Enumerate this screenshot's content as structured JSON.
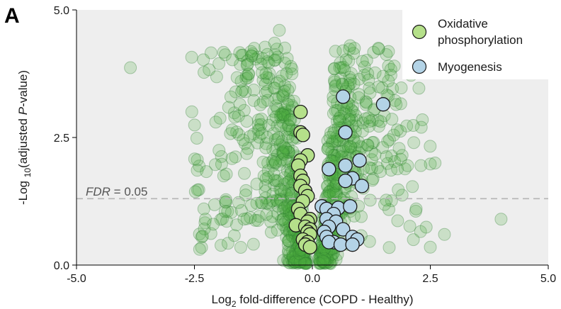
{
  "chart_data": {
    "type": "scatter",
    "panel_label": "A",
    "xlabel": {
      "pre": "Log",
      "sub": "2",
      "post": " fold-difference  (COPD -  Healthy)"
    },
    "ylabel": {
      "pre": "-Log ",
      "sub": "10",
      "mid": "(adjusted ",
      "ital": "P",
      "post": "-value)"
    },
    "xlim": [
      -5,
      5
    ],
    "ylim": [
      0,
      5
    ],
    "x_ticks": [
      "-5.0",
      "-2.5",
      "0.0",
      "2.5",
      "5.0"
    ],
    "y_ticks": [
      "0.0",
      "2.5",
      "5.0"
    ],
    "threshold": {
      "y": 1.301,
      "label_pre": "FDR",
      "label_post": " = 0.05"
    },
    "colors": {
      "background_point": "#4caf3e",
      "oxidative": "#b5e08a",
      "myogenesis": "#b3d3e6",
      "panel_bg": "#eeeeee"
    },
    "legend": {
      "position": "top-right",
      "items": [
        {
          "key": "oxidative",
          "lines": [
            "Oxidative",
            "phosphorylation"
          ]
        },
        {
          "key": "myogenesis",
          "lines": [
            "Myogenesis"
          ]
        }
      ]
    },
    "series": [
      {
        "name": "Oxidative phosphorylation",
        "key": "oxidative",
        "points": [
          [
            -0.25,
            3.0
          ],
          [
            -0.25,
            2.6
          ],
          [
            -0.2,
            2.55
          ],
          [
            -0.1,
            2.15
          ],
          [
            -0.25,
            2.05
          ],
          [
            -0.3,
            1.95
          ],
          [
            -0.25,
            1.75
          ],
          [
            -0.2,
            1.65
          ],
          [
            -0.25,
            1.55
          ],
          [
            -0.15,
            1.45
          ],
          [
            -0.1,
            1.35
          ],
          [
            -0.2,
            1.25
          ],
          [
            -0.3,
            1.1
          ],
          [
            -0.25,
            1.0
          ],
          [
            -0.05,
            0.9
          ],
          [
            -0.1,
            0.85
          ],
          [
            -0.35,
            0.78
          ],
          [
            -0.15,
            0.75
          ],
          [
            -0.05,
            0.7
          ],
          [
            -0.1,
            0.65
          ],
          [
            -0.05,
            0.6
          ],
          [
            -0.2,
            0.5
          ],
          [
            -0.1,
            0.45
          ],
          [
            -0.15,
            0.4
          ],
          [
            -0.05,
            0.35
          ]
        ]
      },
      {
        "name": "Myogenesis",
        "key": "myogenesis",
        "points": [
          [
            0.65,
            3.3
          ],
          [
            1.5,
            3.15
          ],
          [
            0.7,
            2.6
          ],
          [
            1.0,
            2.05
          ],
          [
            0.7,
            1.95
          ],
          [
            0.35,
            1.88
          ],
          [
            0.85,
            1.7
          ],
          [
            0.7,
            1.65
          ],
          [
            1.05,
            1.55
          ],
          [
            0.2,
            1.15
          ],
          [
            0.3,
            1.1
          ],
          [
            0.55,
            1.12
          ],
          [
            0.8,
            1.15
          ],
          [
            0.45,
            1.0
          ],
          [
            0.3,
            0.9
          ],
          [
            0.5,
            0.85
          ],
          [
            0.35,
            0.75
          ],
          [
            0.65,
            0.7
          ],
          [
            0.25,
            0.65
          ],
          [
            0.3,
            0.55
          ],
          [
            0.85,
            0.55
          ],
          [
            0.95,
            0.5
          ],
          [
            0.45,
            0.45
          ],
          [
            0.35,
            0.45
          ],
          [
            0.6,
            0.4
          ],
          [
            0.85,
            0.4
          ]
        ]
      }
    ]
  }
}
